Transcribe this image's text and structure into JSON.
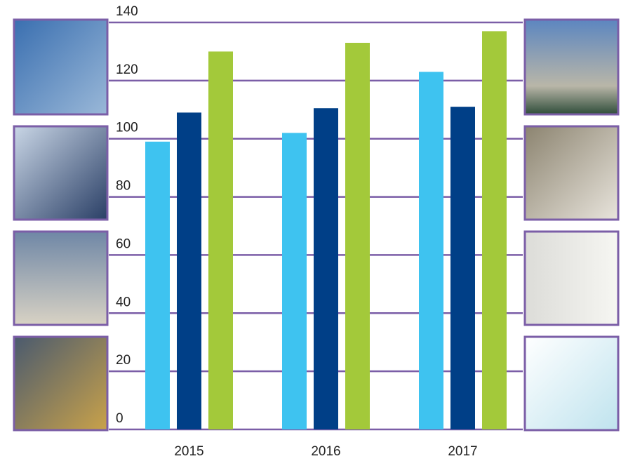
{
  "chart_data": {
    "type": "bar",
    "categories": [
      "2015",
      "2016",
      "2017"
    ],
    "series": [
      {
        "color": "#3ec3f0",
        "values": [
          99,
          102,
          123
        ]
      },
      {
        "color": "#003f87",
        "values": [
          109,
          110.5,
          111
        ]
      },
      {
        "color": "#a3c93a",
        "values": [
          130,
          133,
          137
        ]
      }
    ],
    "ylim": [
      0,
      140
    ],
    "yticks": [
      0,
      20,
      40,
      60,
      80,
      100,
      120,
      140
    ],
    "grid": true,
    "grid_color": "#7b5ea7"
  }
}
